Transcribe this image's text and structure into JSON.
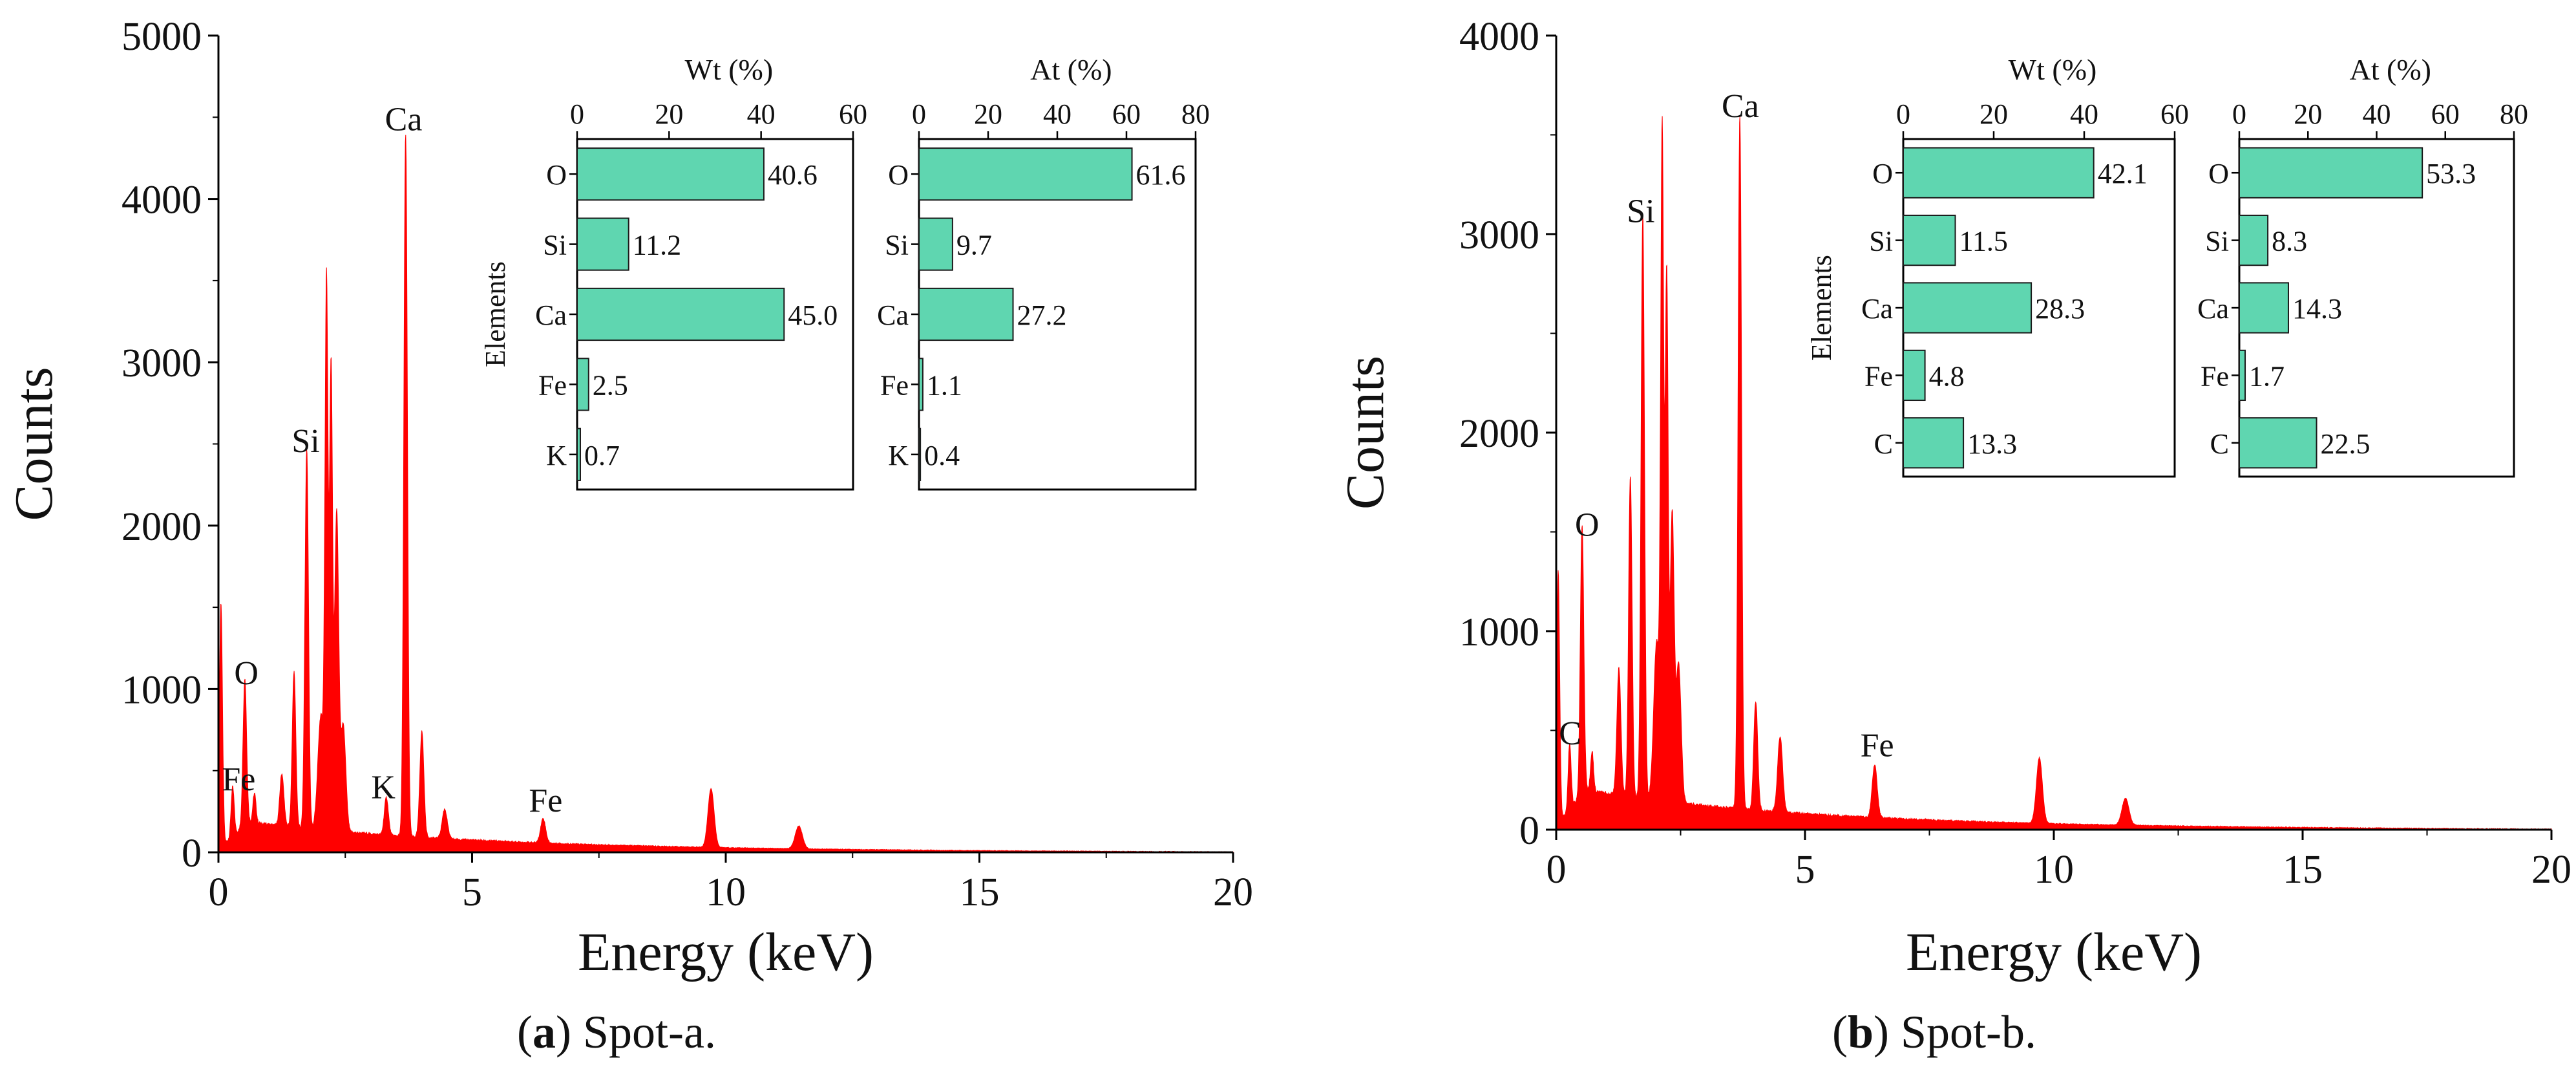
{
  "captions": [
    {
      "letter": "a",
      "text": ") Spot-a."
    },
    {
      "letter": "b",
      "text": ") Spot-b."
    }
  ],
  "colors": {
    "spectrum": "#ff0000",
    "bar_fill": "#5fd6b0",
    "axis": "#000000"
  },
  "chart_data": [
    {
      "type": "area",
      "panel": "a",
      "title": "",
      "xlabel": "Energy (keV)",
      "ylabel": "Counts",
      "xlim": [
        0,
        20
      ],
      "ylim": [
        0,
        5000
      ],
      "xticks": [
        0,
        5,
        10,
        15,
        20
      ],
      "yticks": [
        0,
        1000,
        2000,
        3000,
        4000,
        5000
      ],
      "background": 120,
      "peaks": [
        {
          "x": 0.05,
          "y": 1500,
          "w": 0.03
        },
        {
          "x": 0.28,
          "y": 300,
          "w": 0.03
        },
        {
          "x": 0.52,
          "y": 900,
          "w": 0.035
        },
        {
          "x": 0.71,
          "y": 180,
          "w": 0.03
        },
        {
          "x": 1.25,
          "y": 320,
          "w": 0.04
        },
        {
          "x": 1.49,
          "y": 950,
          "w": 0.035
        },
        {
          "x": 1.74,
          "y": 2330,
          "w": 0.035
        },
        {
          "x": 2.02,
          "y": 700,
          "w": 0.06
        },
        {
          "x": 2.13,
          "y": 3280,
          "w": 0.03
        },
        {
          "x": 2.22,
          "y": 2830,
          "w": 0.03
        },
        {
          "x": 2.33,
          "y": 1950,
          "w": 0.04
        },
        {
          "x": 2.46,
          "y": 650,
          "w": 0.05
        },
        {
          "x": 3.31,
          "y": 230,
          "w": 0.04
        },
        {
          "x": 3.69,
          "y": 4300,
          "w": 0.035
        },
        {
          "x": 4.01,
          "y": 650,
          "w": 0.04
        },
        {
          "x": 4.46,
          "y": 180,
          "w": 0.05
        },
        {
          "x": 6.4,
          "y": 150,
          "w": 0.05
        },
        {
          "x": 9.71,
          "y": 360,
          "w": 0.06
        },
        {
          "x": 11.44,
          "y": 140,
          "w": 0.07
        }
      ],
      "annotations": [
        {
          "text": "Ca",
          "x": 3.65,
          "y": 4420
        },
        {
          "text": "Si",
          "x": 1.72,
          "y": 2450
        },
        {
          "text": "O",
          "x": 0.55,
          "y": 1030
        },
        {
          "text": "Fe",
          "x": 0.4,
          "y": 380
        },
        {
          "text": "K",
          "x": 3.25,
          "y": 330
        },
        {
          "text": "Fe",
          "x": 6.45,
          "y": 250
        }
      ],
      "insets": [
        {
          "type": "bar",
          "orientation": "horizontal",
          "title": "Wt (%)",
          "ylabel": "Elements",
          "xlim": [
            0,
            60
          ],
          "xticks": [
            0,
            20,
            40,
            60
          ],
          "categories": [
            "O",
            "Si",
            "Ca",
            "Fe",
            "K"
          ],
          "values": [
            40.6,
            11.2,
            45.0,
            2.5,
            0.7
          ],
          "labels": [
            "40.6",
            "11.2",
            "45.0",
            "2.5",
            "0.7"
          ]
        },
        {
          "type": "bar",
          "orientation": "horizontal",
          "title": "At (%)",
          "ylabel": "",
          "xlim": [
            0,
            80
          ],
          "xticks": [
            0,
            20,
            40,
            60,
            80
          ],
          "categories": [
            "O",
            "Si",
            "Ca",
            "Fe",
            "K"
          ],
          "values": [
            61.6,
            9.7,
            27.2,
            1.1,
            0.4
          ],
          "labels": [
            "61.6",
            "9.7",
            "27.2",
            "1.1",
            "0.4"
          ]
        }
      ]
    },
    {
      "type": "area",
      "panel": "b",
      "title": "",
      "xlabel": "Energy (keV)",
      "ylabel": "Counts",
      "xlim": [
        0,
        20
      ],
      "ylim": [
        0,
        4000
      ],
      "xticks": [
        0,
        5,
        10,
        15,
        20
      ],
      "yticks": [
        0,
        1000,
        2000,
        3000,
        4000
      ],
      "background": 130,
      "peaks": [
        {
          "x": 0.04,
          "y": 1280,
          "w": 0.03
        },
        {
          "x": 0.27,
          "y": 330,
          "w": 0.03
        },
        {
          "x": 0.52,
          "y": 1360,
          "w": 0.035
        },
        {
          "x": 0.72,
          "y": 200,
          "w": 0.03
        },
        {
          "x": 1.26,
          "y": 640,
          "w": 0.04
        },
        {
          "x": 1.49,
          "y": 1620,
          "w": 0.035
        },
        {
          "x": 1.74,
          "y": 2950,
          "w": 0.035
        },
        {
          "x": 2.02,
          "y": 800,
          "w": 0.06
        },
        {
          "x": 2.13,
          "y": 3270,
          "w": 0.03
        },
        {
          "x": 2.22,
          "y": 2650,
          "w": 0.03
        },
        {
          "x": 2.33,
          "y": 1450,
          "w": 0.04
        },
        {
          "x": 2.46,
          "y": 700,
          "w": 0.05
        },
        {
          "x": 3.69,
          "y": 3500,
          "w": 0.035
        },
        {
          "x": 4.01,
          "y": 550,
          "w": 0.04
        },
        {
          "x": 4.5,
          "y": 380,
          "w": 0.05
        },
        {
          "x": 6.4,
          "y": 265,
          "w": 0.05
        },
        {
          "x": 9.71,
          "y": 330,
          "w": 0.06
        },
        {
          "x": 11.44,
          "y": 135,
          "w": 0.07
        }
      ],
      "annotations": [
        {
          "text": "Ca",
          "x": 3.7,
          "y": 3590
        },
        {
          "text": "Si",
          "x": 1.7,
          "y": 3060
        },
        {
          "text": "O",
          "x": 0.62,
          "y": 1480
        },
        {
          "text": "C",
          "x": 0.28,
          "y": 430
        },
        {
          "text": "Fe",
          "x": 6.45,
          "y": 370
        }
      ],
      "insets": [
        {
          "type": "bar",
          "orientation": "horizontal",
          "title": "Wt (%)",
          "ylabel": "Elements",
          "xlim": [
            0,
            60
          ],
          "xticks": [
            0,
            20,
            40,
            60
          ],
          "categories": [
            "O",
            "Si",
            "Ca",
            "Fe",
            "C"
          ],
          "values": [
            42.1,
            11.5,
            28.3,
            4.8,
            13.3
          ],
          "labels": [
            "42.1",
            "11.5",
            "28.3",
            "4.8",
            "13.3"
          ]
        },
        {
          "type": "bar",
          "orientation": "horizontal",
          "title": "At (%)",
          "ylabel": "",
          "xlim": [
            0,
            80
          ],
          "xticks": [
            0,
            20,
            40,
            60,
            80
          ],
          "categories": [
            "O",
            "Si",
            "Ca",
            "Fe",
            "C"
          ],
          "values": [
            53.3,
            8.3,
            14.3,
            1.7,
            22.5
          ],
          "labels": [
            "53.3",
            "8.3",
            "14.3",
            "1.7",
            "22.5"
          ]
        }
      ]
    }
  ]
}
